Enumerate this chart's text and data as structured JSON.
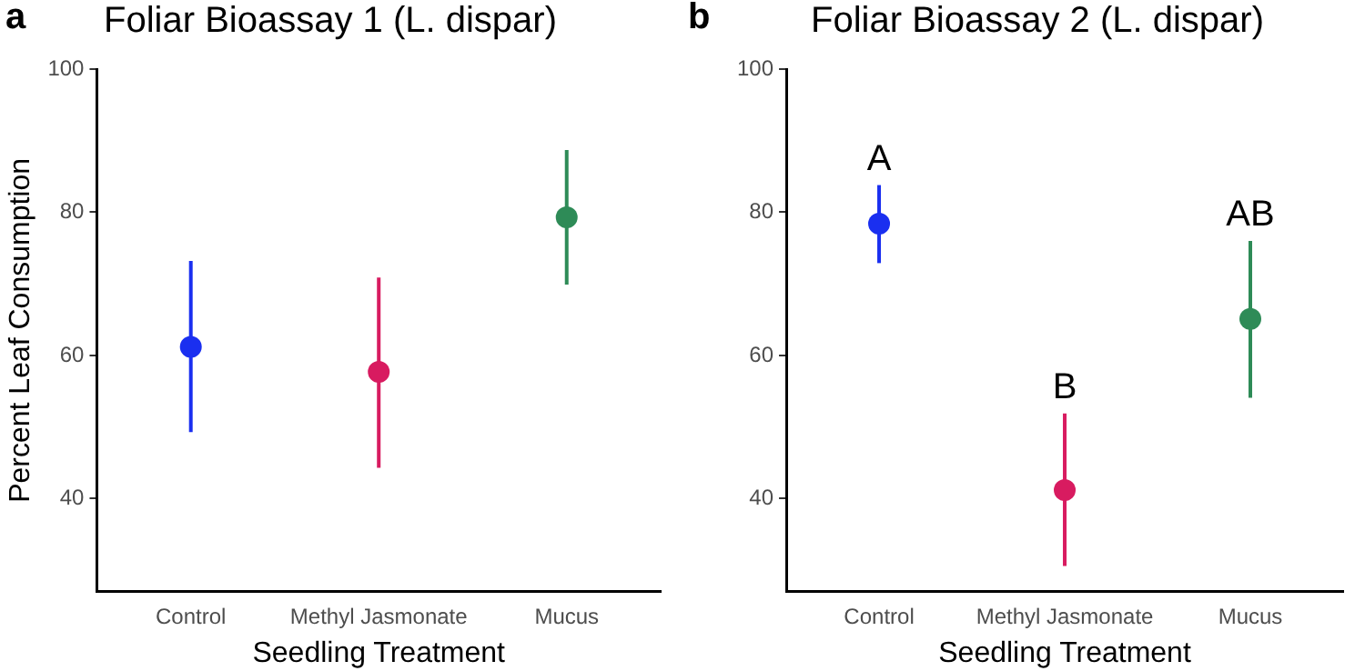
{
  "chart_data": [
    {
      "type": "scatter",
      "title": "Foliar Bioassay 1 (L. dispar)",
      "xlabel": "Seedling Treatment",
      "ylabel": "Percent Leaf Consumption",
      "categories": [
        "Control",
        "Methyl Jasmonate",
        "Mucus"
      ],
      "values": [
        61.2,
        57.7,
        79.3
      ],
      "errors": [
        [
          49.3,
          73.2
        ],
        [
          44.3,
          70.9
        ],
        [
          69.9,
          88.7
        ]
      ],
      "colors": [
        "#1a2ff0",
        "#d81b60",
        "#2e8b57"
      ],
      "ylim": [
        27,
        100
      ],
      "yticks": [
        40,
        60,
        80,
        100
      ],
      "grid": false,
      "legend": false,
      "marker": "circle",
      "annotations": [
        "a"
      ]
    },
    {
      "type": "scatter",
      "title": "Foliar Bioassay 2 (L. dispar)",
      "xlabel": "Seedling Treatment",
      "categories": [
        "Control",
        "Methyl Jasmonate",
        "Mucus"
      ],
      "values": [
        78.4,
        41.2,
        65.1
      ],
      "errors": [
        [
          72.9,
          83.8
        ],
        [
          30.6,
          51.9
        ],
        [
          54.1,
          76
        ]
      ],
      "colors": [
        "#1a2ff0",
        "#d81b60",
        "#2e8b57"
      ],
      "ylim": [
        27,
        100
      ],
      "yticks": [
        40,
        60,
        80,
        100
      ],
      "grid": false,
      "legend": false,
      "marker": "circle",
      "annotations": [
        "b",
        "A",
        "B",
        "AB"
      ]
    }
  ]
}
